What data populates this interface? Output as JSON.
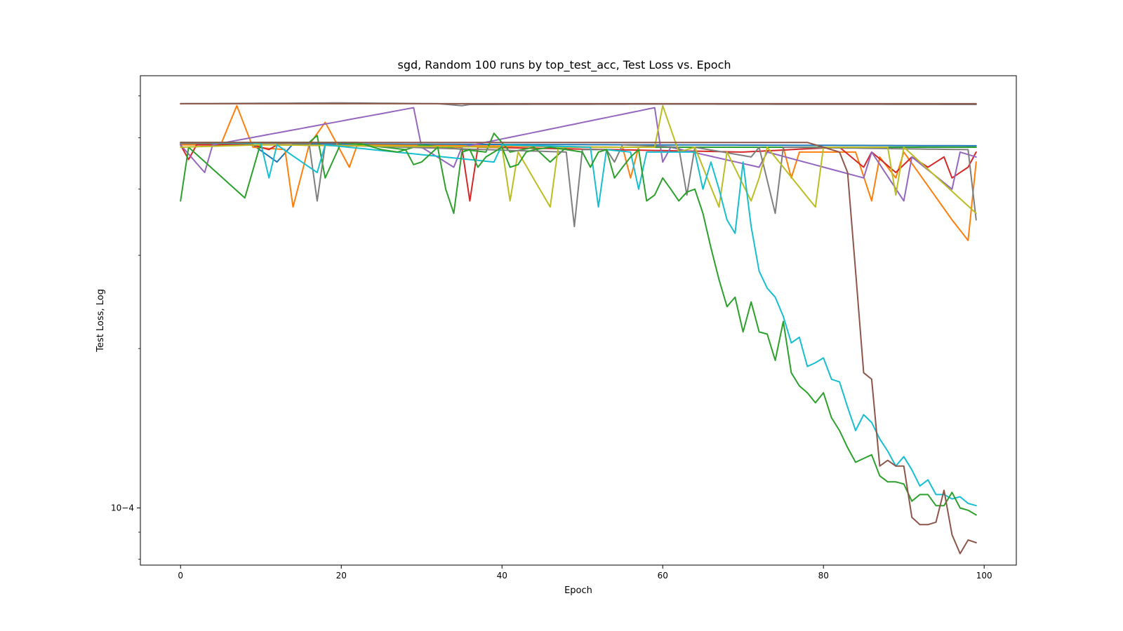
{
  "chart_data": {
    "type": "line",
    "title": "sgd, Random 100 runs by top_test_acc, Test Loss vs. Epoch",
    "xlabel": "Epoch",
    "ylabel": "Test Loss, Log",
    "yscale": "log",
    "xlim": [
      -5,
      104
    ],
    "ylim": [
      7.8e-05,
      0.000655
    ],
    "x_ticks": [
      0,
      20,
      40,
      60,
      80,
      100
    ],
    "y_ticks": [
      {
        "value": 0.0001,
        "label": "10−4"
      }
    ],
    "grid": false,
    "legend": "none",
    "colors": [
      "#1f77b4",
      "#ff7f0e",
      "#2ca02c",
      "#d62728",
      "#9467bd",
      "#8c564b",
      "#e377c2",
      "#7f7f7f",
      "#bcbd22",
      "#17becf"
    ],
    "series": [
      {
        "color": "#7f7f7f",
        "keys": [
          [
            0,
            0.00058
          ],
          [
            20,
            0.000582
          ],
          [
            32,
            0.00058
          ],
          [
            35,
            0.000575
          ],
          [
            36,
            0.000578
          ],
          [
            60,
            0.000579
          ],
          [
            100,
            0.000578
          ]
        ]
      },
      {
        "color": "#8c564b",
        "keys": [
          [
            0,
            0.00058
          ],
          [
            10,
            0.00058
          ],
          [
            100,
            0.00058
          ]
        ]
      },
      {
        "color": "#1f77b4",
        "keys": [
          [
            0,
            0.000487
          ],
          [
            9,
            0.000485
          ],
          [
            12,
            0.00045
          ],
          [
            14,
            0.000487
          ],
          [
            100,
            0.000483
          ]
        ]
      },
      {
        "color": "#ff7f0e",
        "keys": [
          [
            0,
            0.000485
          ],
          [
            5,
            0.000485
          ],
          [
            7,
            0.000575
          ],
          [
            9,
            0.00048
          ],
          [
            13,
            0.000475
          ],
          [
            14,
            0.00037
          ],
          [
            16,
            0.000485
          ],
          [
            18,
            0.000535
          ],
          [
            20,
            0.00047
          ],
          [
            21,
            0.00044
          ],
          [
            22,
            0.000485
          ],
          [
            55,
            0.00048
          ],
          [
            56,
            0.00042
          ],
          [
            57,
            0.00048
          ],
          [
            75,
            0.00048
          ],
          [
            76,
            0.00042
          ],
          [
            77,
            0.00047
          ],
          [
            84,
            0.00047
          ],
          [
            86,
            0.00038
          ],
          [
            87,
            0.00046
          ],
          [
            89,
            0.00042
          ],
          [
            90,
            0.00047
          ],
          [
            96,
            0.00035
          ],
          [
            98,
            0.00032
          ],
          [
            99,
            0.00045
          ]
        ]
      },
      {
        "color": "#d62728",
        "keys": [
          [
            0,
            0.000485
          ],
          [
            1,
            0.000455
          ],
          [
            2,
            0.000485
          ],
          [
            9,
            0.000485
          ],
          [
            11,
            0.000475
          ],
          [
            12,
            0.000485
          ],
          [
            35,
            0.00048
          ],
          [
            36,
            0.00038
          ],
          [
            37,
            0.00048
          ],
          [
            70,
            0.00047
          ],
          [
            82,
            0.00048
          ],
          [
            85,
            0.00044
          ],
          [
            86,
            0.00047
          ],
          [
            89,
            0.00043
          ],
          [
            91,
            0.00046
          ],
          [
            93,
            0.00044
          ],
          [
            95,
            0.00046
          ],
          [
            96,
            0.00042
          ],
          [
            98,
            0.00044
          ],
          [
            99,
            0.00047
          ]
        ]
      },
      {
        "color": "#9467bd",
        "keys": [
          [
            0,
            0.000485
          ],
          [
            3,
            0.00043
          ],
          [
            4,
            0.000485
          ],
          [
            29,
            0.00057
          ],
          [
            30,
            0.00048
          ],
          [
            34,
            0.00044
          ],
          [
            35,
            0.00048
          ],
          [
            59,
            0.00057
          ],
          [
            60,
            0.00045
          ],
          [
            61,
            0.00048
          ],
          [
            72,
            0.00044
          ],
          [
            73,
            0.00047
          ],
          [
            85,
            0.00042
          ],
          [
            86,
            0.00047
          ],
          [
            90,
            0.00038
          ],
          [
            91,
            0.00046
          ],
          [
            96,
            0.0004
          ],
          [
            97,
            0.00047
          ],
          [
            99,
            0.00046
          ]
        ]
      },
      {
        "color": "#2ca02c",
        "keys": [
          [
            0,
            0.00038
          ],
          [
            1,
            0.00048
          ],
          [
            8,
            0.000385
          ],
          [
            10,
            0.00049
          ],
          [
            16,
            0.00049
          ],
          [
            17,
            0.000505
          ],
          [
            18,
            0.00042
          ],
          [
            20,
            0.00049
          ],
          [
            28,
            0.000475
          ],
          [
            30,
            0.000485
          ],
          [
            38,
            0.00047
          ],
          [
            39,
            0.00051
          ],
          [
            41,
            0.00047
          ],
          [
            44,
            0.00048
          ],
          [
            46,
            0.00045
          ],
          [
            48,
            0.00048
          ],
          [
            100,
            0.00048
          ]
        ]
      },
      {
        "color": "#7f7f7f",
        "keys": [
          [
            0,
            0.000488
          ],
          [
            16,
            0.000488
          ],
          [
            17,
            0.00038
          ],
          [
            18,
            0.000485
          ],
          [
            48,
            0.00047
          ],
          [
            49,
            0.00034
          ],
          [
            50,
            0.000475
          ],
          [
            53,
            0.000475
          ],
          [
            54,
            0.00045
          ],
          [
            55,
            0.000485
          ],
          [
            62,
            0.00048
          ],
          [
            63,
            0.00039
          ],
          [
            64,
            0.00048
          ],
          [
            71,
            0.00046
          ],
          [
            72,
            0.00048
          ],
          [
            74,
            0.00036
          ],
          [
            75,
            0.00048
          ],
          [
            98,
            0.000475
          ],
          [
            99,
            0.00035
          ]
        ]
      },
      {
        "color": "#bcbd22",
        "keys": [
          [
            0,
            0.00048
          ],
          [
            10,
            0.000485
          ],
          [
            40,
            0.00048
          ],
          [
            41,
            0.00038
          ],
          [
            42,
            0.00047
          ],
          [
            46,
            0.00037
          ],
          [
            47,
            0.00048
          ],
          [
            59,
            0.00048
          ],
          [
            60,
            0.000575
          ],
          [
            62,
            0.00047
          ],
          [
            64,
            0.00048
          ],
          [
            67,
            0.00037
          ],
          [
            68,
            0.00047
          ],
          [
            71,
            0.00038
          ],
          [
            72,
            0.00042
          ],
          [
            73,
            0.00048
          ],
          [
            79,
            0.00037
          ],
          [
            80,
            0.00048
          ],
          [
            88,
            0.00048
          ],
          [
            89,
            0.00039
          ],
          [
            90,
            0.00048
          ],
          [
            99,
            0.00036
          ]
        ]
      },
      {
        "color": "#17becf",
        "keys": [
          [
            0,
            0.00049
          ],
          [
            10,
            0.000488
          ],
          [
            11,
            0.00042
          ],
          [
            12,
            0.000485
          ],
          [
            17,
            0.00043
          ],
          [
            18,
            0.000485
          ],
          [
            39,
            0.00045
          ],
          [
            40,
            0.000485
          ],
          [
            51,
            0.00048
          ],
          [
            52,
            0.00037
          ],
          [
            53,
            0.000475
          ],
          [
            56,
            0.00047
          ],
          [
            57,
            0.0004
          ],
          [
            58,
            0.00047
          ],
          [
            64,
            0.00047
          ],
          [
            65,
            0.0004
          ],
          [
            66,
            0.00045
          ],
          [
            67,
            0.0004
          ],
          [
            68,
            0.00035
          ],
          [
            69,
            0.00033
          ],
          [
            70,
            0.00045
          ],
          [
            71,
            0.00034
          ],
          [
            72,
            0.00028
          ],
          [
            73,
            0.00026
          ],
          [
            74,
            0.00025
          ],
          [
            75,
            0.00023
          ],
          [
            76,
            0.000205
          ],
          [
            77,
            0.00021
          ],
          [
            78,
            0.000185
          ],
          [
            79,
            0.000188
          ],
          [
            80,
            0.000192
          ],
          [
            81,
            0.000175
          ],
          [
            82,
            0.000173
          ],
          [
            83,
            0.000155
          ],
          [
            84,
            0.00014
          ],
          [
            85,
            0.00015
          ],
          [
            86,
            0.000145
          ],
          [
            87,
            0.000135
          ],
          [
            88,
            0.000128
          ],
          [
            89,
            0.00012
          ],
          [
            90,
            0.000125
          ],
          [
            91,
            0.000118
          ],
          [
            92,
            0.00011
          ],
          [
            93,
            0.000113
          ],
          [
            94,
            0.000106
          ],
          [
            95,
            0.000106
          ],
          [
            96,
            0.000104
          ],
          [
            97,
            0.000105
          ],
          [
            98,
            0.000102
          ],
          [
            99,
            0.000101
          ]
        ]
      },
      {
        "color": "#2ca02c",
        "keys": [
          [
            0,
            0.00049
          ],
          [
            22,
            0.00049
          ],
          [
            25,
            0.000475
          ],
          [
            27,
            0.00047
          ],
          [
            28,
            0.000475
          ],
          [
            29,
            0.000445
          ],
          [
            30,
            0.00045
          ],
          [
            32,
            0.00048
          ],
          [
            33,
            0.0004
          ],
          [
            34,
            0.00036
          ],
          [
            35,
            0.00047
          ],
          [
            36,
            0.000475
          ],
          [
            37,
            0.00044
          ],
          [
            38,
            0.00046
          ],
          [
            39,
            0.00047
          ],
          [
            40,
            0.00048
          ],
          [
            41,
            0.00044
          ],
          [
            42,
            0.000445
          ],
          [
            43,
            0.00047
          ],
          [
            44,
            0.000475
          ],
          [
            46,
            0.00048
          ],
          [
            50,
            0.00047
          ],
          [
            51,
            0.00044
          ],
          [
            52,
            0.00047
          ],
          [
            53,
            0.000475
          ],
          [
            54,
            0.00042
          ],
          [
            55,
            0.00044
          ],
          [
            56,
            0.00046
          ],
          [
            57,
            0.000475
          ],
          [
            58,
            0.00038
          ],
          [
            59,
            0.00039
          ],
          [
            60,
            0.00042
          ],
          [
            61,
            0.0004
          ],
          [
            62,
            0.00038
          ],
          [
            63,
            0.000395
          ],
          [
            64,
            0.0004
          ],
          [
            65,
            0.00036
          ],
          [
            66,
            0.00031
          ],
          [
            67,
            0.00027
          ],
          [
            68,
            0.00024
          ],
          [
            69,
            0.00025
          ],
          [
            70,
            0.000215
          ],
          [
            71,
            0.000245
          ],
          [
            72,
            0.000215
          ],
          [
            73,
            0.000213
          ],
          [
            74,
            0.00019
          ],
          [
            75,
            0.000225
          ],
          [
            76,
            0.00018
          ],
          [
            77,
            0.00017
          ],
          [
            78,
            0.000165
          ],
          [
            79,
            0.000158
          ],
          [
            80,
            0.000165
          ],
          [
            81,
            0.000148
          ],
          [
            82,
            0.00014
          ],
          [
            83,
            0.00013
          ],
          [
            84,
            0.000122
          ],
          [
            85,
            0.000124
          ],
          [
            86,
            0.000126
          ],
          [
            87,
            0.000115
          ],
          [
            88,
            0.000112
          ],
          [
            89,
            0.000112
          ],
          [
            90,
            0.000111
          ],
          [
            91,
            0.000103
          ],
          [
            92,
            0.000106
          ],
          [
            93,
            0.000106
          ],
          [
            94,
            0.000101
          ],
          [
            95,
            0.000101
          ],
          [
            96,
            0.000107
          ],
          [
            97,
            0.0001
          ],
          [
            98,
            9.9e-05
          ],
          [
            99,
            9.7e-05
          ]
        ]
      },
      {
        "color": "#8c564b",
        "keys": [
          [
            0,
            0.00049
          ],
          [
            78,
            0.00049
          ],
          [
            80,
            0.00048
          ],
          [
            82,
            0.00047
          ],
          [
            83,
            0.00043
          ],
          [
            84,
            0.00028
          ],
          [
            85,
            0.00018
          ],
          [
            86,
            0.000175
          ],
          [
            87,
            0.00012
          ],
          [
            88,
            0.000123
          ],
          [
            89,
            0.00012
          ],
          [
            90,
            0.00012
          ],
          [
            91,
            9.6e-05
          ],
          [
            92,
            9.3e-05
          ],
          [
            93,
            9.3e-05
          ],
          [
            94,
            9.4e-05
          ],
          [
            95,
            0.000108
          ],
          [
            96,
            8.9e-05
          ],
          [
            97,
            8.2e-05
          ],
          [
            98,
            8.7e-05
          ],
          [
            99,
            8.6e-05
          ]
        ]
      }
    ]
  }
}
